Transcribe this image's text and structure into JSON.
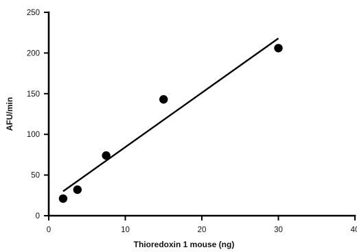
{
  "chart_data": {
    "type": "scatter",
    "title": "",
    "xlabel": "Thioredoxin 1 mouse (ng)",
    "ylabel": "AFU/min",
    "xlim": [
      0,
      40
    ],
    "ylim": [
      0,
      250
    ],
    "x_ticks": [
      0,
      10,
      20,
      30,
      40
    ],
    "y_ticks": [
      0,
      50,
      100,
      150,
      200,
      250
    ],
    "grid": false,
    "legend": "none",
    "series": [
      {
        "x": [
          1.875,
          3.75,
          7.5,
          15,
          30
        ],
        "y": [
          21,
          32,
          74,
          143,
          206
        ],
        "marker": "filled-circle",
        "color": "#000000"
      }
    ],
    "trendline": {
      "type": "linear",
      "x": [
        1.875,
        30
      ],
      "y": [
        30,
        218
      ],
      "color": "#000000"
    }
  }
}
